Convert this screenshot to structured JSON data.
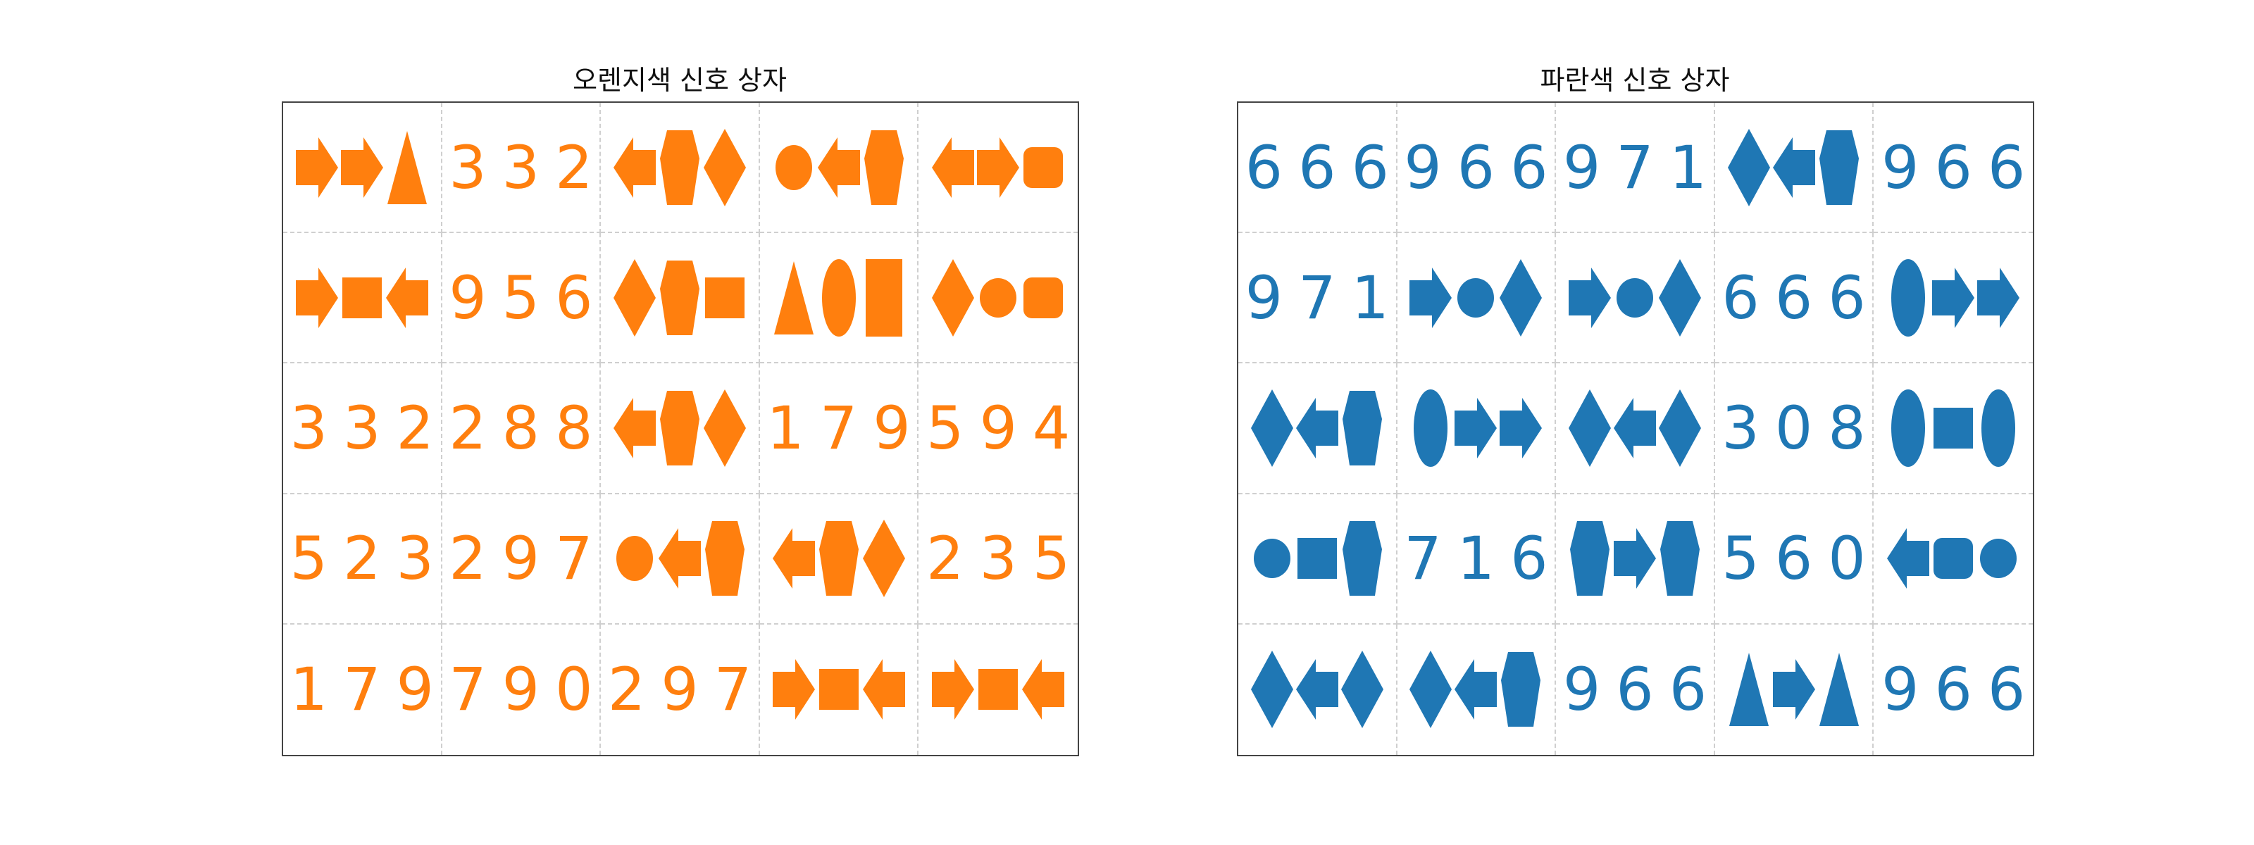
{
  "panels": [
    {
      "title": "오렌지색 신호 상자",
      "color": "#ff7f0e",
      "rows": [
        [
          {
            "s": [
              "arrow-right",
              "arrow-right",
              "triangle"
            ]
          },
          {
            "t": "332"
          },
          {
            "s": [
              "arrow-left",
              "pentagon",
              "diamond"
            ]
          },
          {
            "s": [
              "ellipse",
              "arrow-left",
              "pentagon"
            ]
          },
          {
            "s": [
              "arrow-left",
              "arrow-right",
              "rounded-square"
            ]
          }
        ],
        [
          {
            "s": [
              "arrow-right",
              "square",
              "arrow-left"
            ]
          },
          {
            "t": "956"
          },
          {
            "s": [
              "diamond",
              "pentagon",
              "square"
            ]
          },
          {
            "s": [
              "triangle",
              "ellipse-tall",
              "rectangle-tall"
            ]
          },
          {
            "s": [
              "diamond",
              "circle",
              "rounded-square"
            ]
          }
        ],
        [
          {
            "t": "332"
          },
          {
            "t": "288"
          },
          {
            "s": [
              "arrow-left",
              "pentagon",
              "diamond"
            ]
          },
          {
            "t": "179"
          },
          {
            "t": "594"
          }
        ],
        [
          {
            "t": "523"
          },
          {
            "t": "297"
          },
          {
            "s": [
              "ellipse",
              "arrow-left",
              "pentagon"
            ]
          },
          {
            "s": [
              "arrow-left",
              "pentagon",
              "diamond"
            ]
          },
          {
            "t": "235"
          }
        ],
        [
          {
            "t": "179"
          },
          {
            "t": "790"
          },
          {
            "t": "297"
          },
          {
            "s": [
              "arrow-right",
              "square",
              "arrow-left"
            ]
          },
          {
            "s": [
              "arrow-right",
              "square",
              "arrow-left"
            ]
          }
        ]
      ]
    },
    {
      "title": "파란색 신호 상자",
      "color": "#1f77b4",
      "rows": [
        [
          {
            "t": "666"
          },
          {
            "t": "966"
          },
          {
            "t": "971"
          },
          {
            "s": [
              "diamond",
              "arrow-left",
              "pentagon"
            ]
          },
          {
            "t": "966"
          }
        ],
        [
          {
            "t": "971"
          },
          {
            "s": [
              "arrow-right",
              "circle",
              "diamond"
            ]
          },
          {
            "s": [
              "arrow-right",
              "circle",
              "diamond"
            ]
          },
          {
            "t": "666"
          },
          {
            "s": [
              "ellipse-tall",
              "arrow-right",
              "arrow-right"
            ]
          }
        ],
        [
          {
            "s": [
              "diamond",
              "arrow-left",
              "pentagon"
            ]
          },
          {
            "s": [
              "ellipse-tall",
              "arrow-right",
              "arrow-right"
            ]
          },
          {
            "s": [
              "diamond",
              "arrow-left",
              "diamond"
            ]
          },
          {
            "t": "308"
          },
          {
            "s": [
              "ellipse-tall",
              "square",
              "ellipse-tall"
            ]
          }
        ],
        [
          {
            "s": [
              "circle",
              "square",
              "pentagon"
            ]
          },
          {
            "t": "716"
          },
          {
            "s": [
              "pentagon",
              "arrow-right",
              "pentagon"
            ]
          },
          {
            "t": "560"
          },
          {
            "s": [
              "arrow-left",
              "rounded-square",
              "circle"
            ]
          }
        ],
        [
          {
            "s": [
              "diamond",
              "arrow-left",
              "diamond"
            ]
          },
          {
            "s": [
              "diamond",
              "arrow-left",
              "pentagon"
            ]
          },
          {
            "t": "966"
          },
          {
            "s": [
              "triangle",
              "arrow-right",
              "triangle"
            ]
          },
          {
            "t": "966"
          }
        ]
      ]
    }
  ]
}
